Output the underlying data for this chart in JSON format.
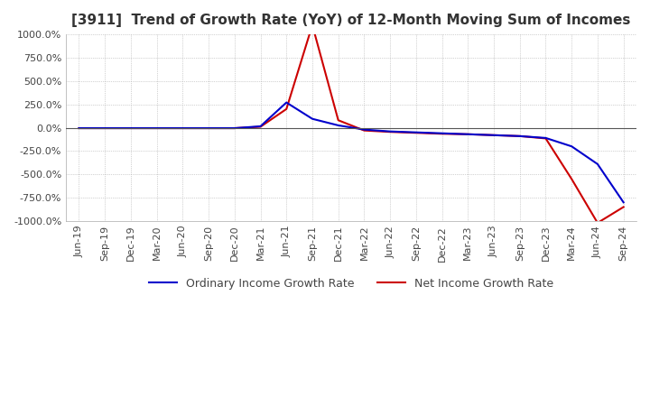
{
  "title": "[3911]  Trend of Growth Rate (YoY) of 12-Month Moving Sum of Incomes",
  "ylim": [
    -1000,
    1000
  ],
  "yticks": [
    1000,
    750,
    500,
    250,
    0,
    -250,
    -500,
    -750,
    -1000
  ],
  "background_color": "#ffffff",
  "grid_color": "#aaaaaa",
  "legend_labels": [
    "Ordinary Income Growth Rate",
    "Net Income Growth Rate"
  ],
  "line_colors": [
    "#0000cc",
    "#cc0000"
  ],
  "x_labels": [
    "Jun-19",
    "Sep-19",
    "Dec-19",
    "Mar-20",
    "Jun-20",
    "Sep-20",
    "Dec-20",
    "Mar-21",
    "Jun-21",
    "Sep-21",
    "Dec-21",
    "Mar-22",
    "Jun-22",
    "Sep-22",
    "Dec-22",
    "Mar-23",
    "Jun-23",
    "Sep-23",
    "Dec-23",
    "Mar-24",
    "Jun-24",
    "Sep-24"
  ],
  "ordinary_income": [
    -5,
    -5,
    -5,
    -5,
    -5,
    -5,
    -5,
    15,
    270,
    95,
    25,
    -20,
    -40,
    -50,
    -60,
    -70,
    -80,
    -90,
    -110,
    -200,
    -390,
    -800
  ],
  "net_income": [
    -5,
    -5,
    -5,
    -5,
    -5,
    -5,
    -5,
    10,
    200,
    1100,
    80,
    -30,
    -45,
    -55,
    -65,
    -70,
    -80,
    -90,
    -115,
    -550,
    -1020,
    -850
  ]
}
